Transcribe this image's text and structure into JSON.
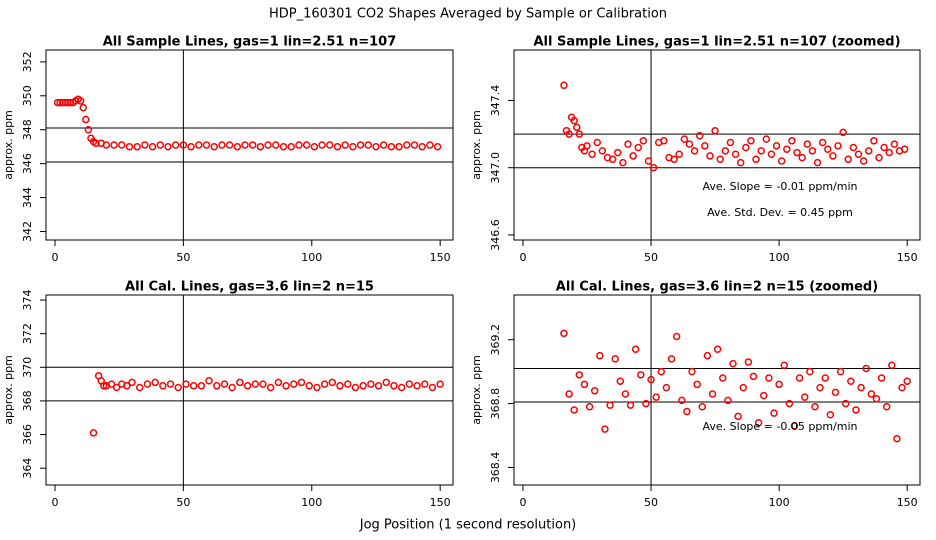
{
  "title": "HDP_160301  CO2 Shapes Averaged by Sample or Calibration",
  "xlabel": "Jog Position (1 second resolution)",
  "chart_data": [
    {
      "type": "scatter",
      "title": "All Sample Lines, gas=1 lin=2.51 n=107",
      "ylabel": "approx. ppm",
      "color": "#ff0000",
      "xlim": [
        -3.5,
        155
      ],
      "ylim": [
        341.5,
        352.7
      ],
      "xticks": [
        0,
        50,
        100,
        150
      ],
      "yticks": [
        342,
        344,
        346,
        348,
        350,
        352
      ],
      "hlines": [
        348.1,
        346.1
      ],
      "vline": 50,
      "annotations": [],
      "x": [
        1,
        2,
        3,
        4,
        5,
        6,
        7,
        8,
        9,
        10,
        11,
        12,
        13,
        14,
        15,
        16,
        18,
        20,
        23,
        26,
        29,
        32,
        35,
        38,
        41,
        44,
        47,
        50,
        53,
        56,
        59,
        62,
        65,
        68,
        71,
        74,
        77,
        80,
        83,
        86,
        89,
        92,
        95,
        98,
        101,
        104,
        107,
        110,
        113,
        116,
        119,
        122,
        125,
        128,
        131,
        134,
        137,
        140,
        143,
        146,
        149
      ],
      "y": [
        349.6,
        349.6,
        349.6,
        349.6,
        349.6,
        349.6,
        349.6,
        349.7,
        349.8,
        349.7,
        349.3,
        348.6,
        348.0,
        347.5,
        347.3,
        347.2,
        347.2,
        347.1,
        347.1,
        347.1,
        347.0,
        347.0,
        347.1,
        347.0,
        347.1,
        347.0,
        347.1,
        347.1,
        347.0,
        347.1,
        347.1,
        347.0,
        347.1,
        347.1,
        347.0,
        347.1,
        347.1,
        347.0,
        347.1,
        347.1,
        347.0,
        347.0,
        347.1,
        347.1,
        347.0,
        347.1,
        347.1,
        347.0,
        347.1,
        347.0,
        347.1,
        347.1,
        347.0,
        347.1,
        347.0,
        347.0,
        347.1,
        347.1,
        347.0,
        347.1,
        347.0
      ]
    },
    {
      "type": "scatter",
      "title": "All Sample Lines, gas=1 lin=2.51 n=107 (zoomed)",
      "ylabel": "approx. ppm",
      "color": "#ff0000",
      "xlim": [
        -3.5,
        155
      ],
      "ylim": [
        346.57,
        347.7
      ],
      "xticks": [
        0,
        50,
        100,
        150
      ],
      "yticks": [
        346.6,
        {
          "value": 347,
          "label": "347.0"
        },
        347.4
      ],
      "hlines": [
        347.2,
        347.0
      ],
      "vline": 50,
      "annotations": [
        "Ave. Slope =  -0.01  ppm/min",
        "Ave. Std. Dev. =  0.45  ppm"
      ],
      "x": [
        16,
        17,
        18,
        19,
        20,
        21,
        22,
        23,
        24,
        25,
        27,
        29,
        31,
        33,
        35,
        37,
        39,
        41,
        43,
        45,
        47,
        49,
        51,
        53,
        55,
        57,
        59,
        61,
        63,
        65,
        67,
        69,
        71,
        73,
        75,
        77,
        79,
        81,
        83,
        85,
        87,
        89,
        91,
        93,
        95,
        97,
        99,
        101,
        103,
        105,
        107,
        109,
        111,
        113,
        115,
        117,
        119,
        121,
        123,
        125,
        127,
        129,
        131,
        133,
        135,
        137,
        139,
        141,
        143,
        145,
        147,
        149
      ],
      "y": [
        347.49,
        347.22,
        347.2,
        347.3,
        347.28,
        347.24,
        347.2,
        347.12,
        347.1,
        347.13,
        347.08,
        347.15,
        347.1,
        347.06,
        347.05,
        347.09,
        347.03,
        347.14,
        347.07,
        347.12,
        347.16,
        347.04,
        347.0,
        347.15,
        347.16,
        347.06,
        347.05,
        347.08,
        347.17,
        347.14,
        347.1,
        347.19,
        347.13,
        347.07,
        347.22,
        347.05,
        347.1,
        347.15,
        347.08,
        347.03,
        347.12,
        347.16,
        347.05,
        347.1,
        347.17,
        347.08,
        347.13,
        347.04,
        347.11,
        347.16,
        347.09,
        347.06,
        347.14,
        347.1,
        347.03,
        347.15,
        347.11,
        347.07,
        347.13,
        347.21,
        347.05,
        347.12,
        347.08,
        347.04,
        347.1,
        347.16,
        347.06,
        347.12,
        347.09,
        347.14,
        347.1,
        347.11
      ]
    },
    {
      "type": "scatter",
      "title": "All Cal. Lines, gas=3.6 lin=2 n=15",
      "ylabel": "approx. ppm",
      "color": "#ff0000",
      "xlim": [
        -3.5,
        155
      ],
      "ylim": [
        363,
        374.3
      ],
      "xticks": [
        0,
        50,
        100,
        150
      ],
      "yticks": [
        364,
        366,
        368,
        370,
        372,
        374
      ],
      "hlines": [
        370,
        368
      ],
      "vline": 50,
      "annotations": [],
      "x": [
        15,
        17,
        18,
        19,
        20,
        22,
        24,
        26,
        28,
        30,
        33,
        36,
        39,
        42,
        45,
        48,
        51,
        54,
        57,
        60,
        63,
        66,
        69,
        72,
        75,
        78,
        81,
        84,
        87,
        90,
        93,
        96,
        99,
        102,
        105,
        108,
        111,
        114,
        117,
        120,
        123,
        126,
        129,
        132,
        135,
        138,
        141,
        144,
        147,
        150
      ],
      "y": [
        366.1,
        369.5,
        369.2,
        368.9,
        368.9,
        369.0,
        368.8,
        369.0,
        368.9,
        369.1,
        368.8,
        369.0,
        369.1,
        368.9,
        369.0,
        368.8,
        369.0,
        368.9,
        368.9,
        369.2,
        368.9,
        369.0,
        368.8,
        369.1,
        368.9,
        369.0,
        369.0,
        368.8,
        369.1,
        368.9,
        369.0,
        369.1,
        368.9,
        368.8,
        369.0,
        369.1,
        368.9,
        369.0,
        368.8,
        368.9,
        369.0,
        368.9,
        369.1,
        368.9,
        368.8,
        369.0,
        368.9,
        369.0,
        368.8,
        369.0
      ]
    },
    {
      "type": "scatter",
      "title": "All Cal. Lines, gas=3.6 lin=2 n=15 (zoomed)",
      "ylabel": "approx. ppm",
      "color": "#ff0000",
      "xlim": [
        -3.5,
        155
      ],
      "ylim": [
        368.29,
        369.48
      ],
      "xticks": [
        0,
        50,
        100,
        150
      ],
      "yticks": [
        368.4,
        368.8,
        369.2
      ],
      "hlines": [
        369.02,
        368.81
      ],
      "vline": 50,
      "annotations": [
        "Ave. Slope =  -0.05  ppm/min"
      ],
      "x": [
        16,
        18,
        20,
        22,
        24,
        26,
        28,
        30,
        32,
        34,
        36,
        38,
        40,
        42,
        44,
        46,
        48,
        50,
        52,
        54,
        56,
        58,
        60,
        62,
        64,
        66,
        68,
        70,
        72,
        74,
        76,
        78,
        80,
        82,
        84,
        86,
        88,
        90,
        92,
        94,
        96,
        98,
        100,
        102,
        104,
        106,
        108,
        110,
        112,
        114,
        116,
        118,
        120,
        122,
        124,
        126,
        128,
        130,
        132,
        134,
        136,
        138,
        140,
        142,
        144,
        146,
        148,
        150
      ],
      "y": [
        369.24,
        368.86,
        368.76,
        368.98,
        368.92,
        368.78,
        368.88,
        369.1,
        368.64,
        368.79,
        369.08,
        368.94,
        368.86,
        368.79,
        369.14,
        368.98,
        368.8,
        368.95,
        368.84,
        369.0,
        368.9,
        369.08,
        369.22,
        368.82,
        368.75,
        369.0,
        368.92,
        368.78,
        369.1,
        368.86,
        369.14,
        368.96,
        368.82,
        369.05,
        368.72,
        368.9,
        369.06,
        368.97,
        368.68,
        368.85,
        368.96,
        368.74,
        368.92,
        369.04,
        368.8,
        368.66,
        368.96,
        368.84,
        369.0,
        368.78,
        368.9,
        368.96,
        368.73,
        368.87,
        369.0,
        368.8,
        368.94,
        368.76,
        368.9,
        369.02,
        368.86,
        368.83,
        368.96,
        368.78,
        369.04,
        368.58,
        368.9,
        368.94
      ]
    }
  ]
}
